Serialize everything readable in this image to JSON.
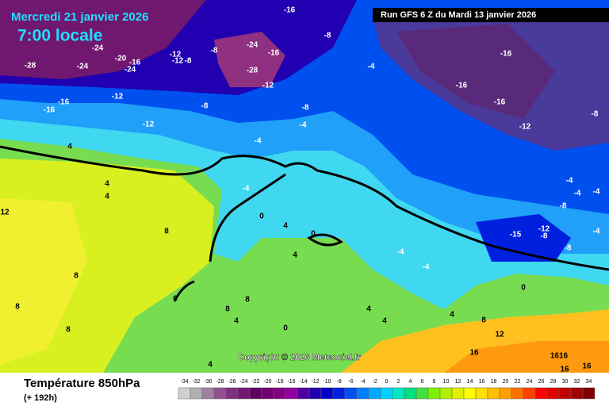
{
  "header": {
    "date": "Mercredi 21 janvier 2026",
    "time": "7:00 locale",
    "run": "Run GFS 6 Z du Mardi 13 janvier 2026"
  },
  "footer": {
    "title": "Température 850hPa",
    "subtitle": "(+ 192h)",
    "copyright": "Copyright © 2026 Meteociel.fr"
  },
  "legend": {
    "values": [
      -34,
      -32,
      -30,
      -28,
      -26,
      -24,
      -22,
      -20,
      -18,
      -16,
      -14,
      -12,
      -10,
      -8,
      -6,
      -4,
      -2,
      0,
      2,
      4,
      6,
      8,
      10,
      12,
      14,
      16,
      18,
      20,
      22,
      24,
      26,
      28,
      30,
      32,
      34
    ],
    "colors": [
      "#d0d0d0",
      "#b0b0b0",
      "#a080a0",
      "#905090",
      "#803080",
      "#701870",
      "#600060",
      "#700070",
      "#800080",
      "#9000a0",
      "#5000a0",
      "#2000b0",
      "#0000c8",
      "#0020e0",
      "#0050f0",
      "#0080ff",
      "#00a8ff",
      "#00d0ff",
      "#00e8c0",
      "#00e080",
      "#40e040",
      "#80f000",
      "#b0f000",
      "#e0f000",
      "#ffff00",
      "#ffe000",
      "#ffc000",
      "#ffa000",
      "#ff7000",
      "#ff4000",
      "#ff0000",
      "#e00000",
      "#c00000",
      "#a00000",
      "#800000"
    ]
  },
  "contour_labels": [
    -16,
    -24,
    -24,
    -20,
    -16,
    -24,
    -28,
    -12,
    -12,
    -8,
    -8,
    -24,
    -28,
    -12,
    -16,
    -8,
    -4,
    -8,
    -12,
    -16,
    -16,
    -12,
    -8,
    -4,
    -4,
    -16,
    -16,
    -16,
    -12,
    -8,
    -4,
    -4,
    -4,
    -8,
    -12,
    -15,
    -8,
    -8,
    -4,
    -4,
    0,
    4,
    4,
    4,
    12,
    8,
    8,
    8,
    8,
    4,
    8,
    8,
    0,
    4,
    4,
    4,
    8,
    12,
    16,
    1616,
    16,
    16,
    0,
    0,
    4,
    4,
    -4,
    -4,
    0,
    4
  ]
}
